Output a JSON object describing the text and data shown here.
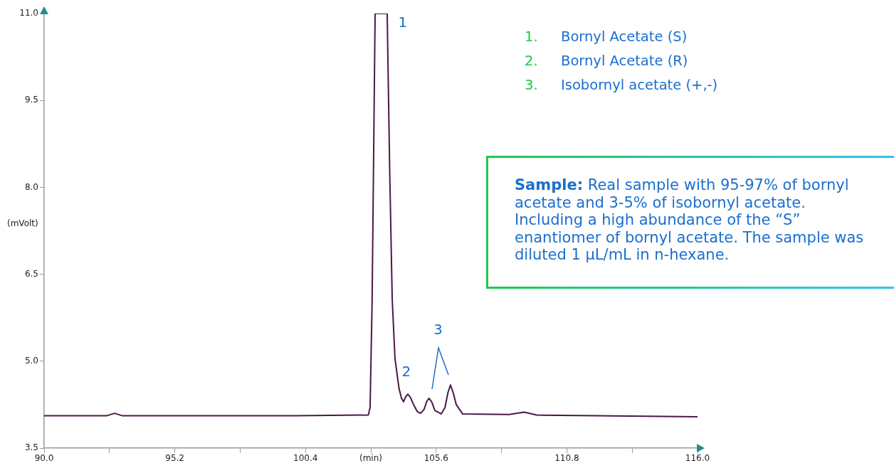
{
  "chart_data": {
    "type": "line",
    "ylabel": "(mVolt)",
    "x": [
      90,
      92.5,
      92.8,
      93.1,
      95,
      100,
      102.9,
      102.97,
      103.05,
      103.17,
      103.65,
      103.75,
      103.85,
      103.96,
      104.12,
      104.22,
      104.3,
      104.38,
      104.47,
      104.57,
      104.7,
      104.85,
      104.98,
      105.12,
      105.22,
      105.31,
      105.42,
      105.55,
      105.8,
      105.95,
      106.07,
      106.17,
      106.28,
      106.4,
      106.65,
      108.5,
      109.1,
      109.6,
      112,
      116
    ],
    "series": [
      {
        "color": "#4a1848",
        "values": [
          4.06,
          4.06,
          4.1,
          4.06,
          4.06,
          4.06,
          4.07,
          4.2,
          6.0,
          11.0,
          11.0,
          8.3,
          6.08,
          5.05,
          4.53,
          4.36,
          4.3,
          4.38,
          4.43,
          4.38,
          4.25,
          4.13,
          4.1,
          4.17,
          4.3,
          4.36,
          4.3,
          4.15,
          4.09,
          4.2,
          4.46,
          4.59,
          4.45,
          4.25,
          4.09,
          4.08,
          4.12,
          4.07,
          4.06,
          4.04
        ]
      }
    ],
    "xlim": [
      90,
      116
    ],
    "ylim": [
      3.5,
      11
    ],
    "xticks": [
      {
        "value": 90,
        "label": "90.0"
      },
      {
        "value": 92.6,
        "label": null
      },
      95.2,
      {
        "value": 97.8,
        "label": null
      },
      100.4,
      {
        "value": 103,
        "label": "(min)"
      },
      105.6,
      {
        "value": 108.2,
        "label": null
      },
      110.8,
      {
        "value": 113.4,
        "label": null
      },
      {
        "value": 116,
        "label": "116.0"
      }
    ],
    "yticks": [
      3.5,
      {
        "value": 5,
        "label": "5.0"
      },
      6.5,
      {
        "value": 8,
        "label": "8.0"
      },
      9.5,
      {
        "value": 11,
        "label": "11.0"
      }
    ],
    "grid": false,
    "legend": false,
    "marker": "none",
    "line_style": "solid",
    "annotations": [
      {
        "text": "1",
        "x": 103.65,
        "y": 11.0
      },
      {
        "text": "2",
        "x": 104.47,
        "y": 4.43
      },
      "3",
      "1.\tBornyl Acetate (S)",
      "2.\tBornyl Acetate (R)",
      "3.\tIsobornyl acetate (+,-)",
      "Sample: Real sample with 95-97% of bornyl acetate and 3-5% of isobornyl acetate. Including a high abundance of the “S” enantiomer of bornyl acetate. The sample was diluted 1 µL/mL in n-hexane."
    ]
  }
}
